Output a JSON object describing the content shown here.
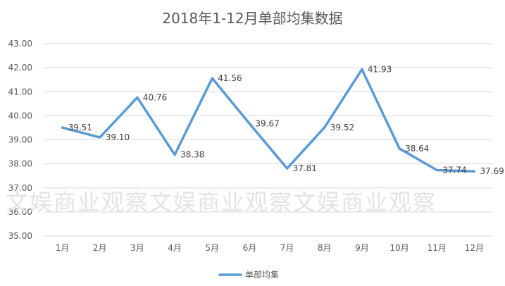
{
  "chart_data": {
    "type": "line",
    "title": "2018年1-12月单部均集数据",
    "categories": [
      "1月",
      "2月",
      "3月",
      "4月",
      "5月",
      "6月",
      "7月",
      "8月",
      "9月",
      "10月",
      "11月",
      "12月"
    ],
    "series": [
      {
        "name": "单部均集",
        "values": [
          39.51,
          39.1,
          40.76,
          38.38,
          41.56,
          39.67,
          37.81,
          39.52,
          41.93,
          38.64,
          37.74,
          37.69
        ],
        "color": "#5b9bd5"
      }
    ],
    "data_labels": [
      "39.51",
      "39.10",
      "40.76",
      "38.38",
      "41.56",
      "39.67",
      "37.81",
      "39.52",
      "41.93",
      "38.64",
      "37.74",
      "37.69"
    ],
    "ylim": [
      35,
      43
    ],
    "yticks": [
      "35.00",
      "36.00",
      "37.00",
      "38.00",
      "39.00",
      "40.00",
      "41.00",
      "42.00",
      "43.00"
    ],
    "xlabel": "",
    "ylabel": "",
    "grid": true,
    "legend_position": "bottom"
  },
  "watermark": "文娱商业观察文娱商业观察文娱商业观察"
}
